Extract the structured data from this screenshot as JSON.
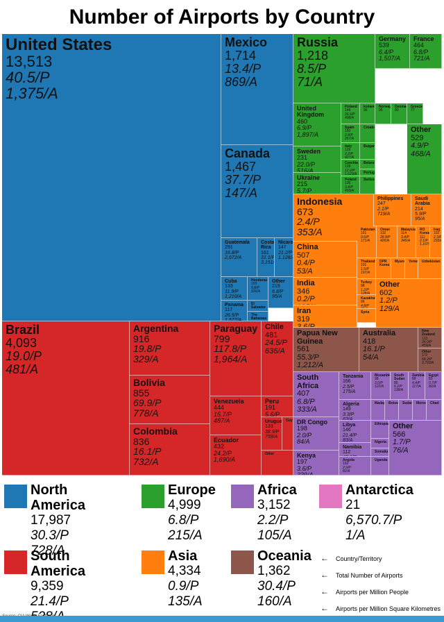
{
  "chart_data": {
    "type": "treemap",
    "title": "Number of Airports by Country",
    "colors": {
      "north_america": "#1f77b4",
      "south_america": "#d62728",
      "europe": "#2ca02c",
      "asia": "#ff7f0e",
      "africa": "#9467bd",
      "oceania": "#8c564b",
      "antarctica": "#e377c2"
    },
    "tiles": [
      {
        "name": "United States",
        "region": "north_america",
        "total": "13,513",
        "per_p": "40.5/P",
        "per_a": "1,375/A"
      },
      {
        "name": "Mexico",
        "region": "north_america",
        "total": "1,714",
        "per_p": "13.4/P",
        "per_a": "869/A"
      },
      {
        "name": "Canada",
        "region": "north_america",
        "total": "1,467",
        "per_p": "37.7/P",
        "per_a": "147/A"
      },
      {
        "name": "Guatemala",
        "region": "north_america",
        "total": "291",
        "per_p": "16.8/P",
        "per_a": "2,672/A"
      },
      {
        "name": "Costa Rica",
        "region": "north_america",
        "total": "161",
        "per_p": "31.1/P",
        "per_a": "3,151/A"
      },
      {
        "name": "Nicaragua",
        "region": "north_america",
        "total": "147",
        "per_p": "21.2/P",
        "per_a": "1,128/A"
      },
      {
        "name": "Cuba",
        "region": "north_america",
        "total": "133",
        "per_p": "11.9/P",
        "per_a": "1,210/A"
      },
      {
        "name": "Honduras",
        "region": "north_america",
        "total": "103",
        "per_p": "9.8/P",
        "per_a": "916/A"
      },
      {
        "name": "Other",
        "region": "north_america",
        "total": "219",
        "per_p": "6.8/P",
        "per_a": "95/A"
      },
      {
        "name": "Panama",
        "region": "north_america",
        "total": "117",
        "per_p": "26.5/P",
        "per_a": "1,577/A"
      },
      {
        "name": "El Salvador",
        "region": "north_america",
        "total": "",
        "per_p": "",
        "per_a": ""
      },
      {
        "name": "The Bahamas",
        "region": "north_america",
        "total": "",
        "per_p": "",
        "per_a": ""
      },
      {
        "name": "Brazil",
        "region": "south_america",
        "total": "4,093",
        "per_p": "19.0/P",
        "per_a": "481/A"
      },
      {
        "name": "Argentina",
        "region": "south_america",
        "total": "916",
        "per_p": "19.8/P",
        "per_a": "329/A"
      },
      {
        "name": "Bolivia",
        "region": "south_america",
        "total": "855",
        "per_p": "69.9/P",
        "per_a": "778/A"
      },
      {
        "name": "Colombia",
        "region": "south_america",
        "total": "836",
        "per_p": "16.1/P",
        "per_a": "732/A"
      },
      {
        "name": "Paraguay",
        "region": "south_america",
        "total": "799",
        "per_p": "117.8/P",
        "per_a": "1,964/A"
      },
      {
        "name": "Chile",
        "region": "south_america",
        "total": "481",
        "per_p": "24.5/P",
        "per_a": "636/A"
      },
      {
        "name": "Venezuela",
        "region": "south_america",
        "total": "444",
        "per_p": "15.7/P",
        "per_a": "487/A"
      },
      {
        "name": "Peru",
        "region": "south_america",
        "total": "191",
        "per_p": "5.6/P",
        "per_a": "149/A"
      },
      {
        "name": "Uruguay",
        "region": "south_america",
        "total": "133",
        "per_p": "38.9/P",
        "per_a": "759/A"
      },
      {
        "name": "Guyana",
        "region": "south_america",
        "total": "",
        "per_p": "",
        "per_a": ""
      },
      {
        "name": "Ecuador",
        "region": "south_america",
        "total": "432",
        "per_p": "24.2/P",
        "per_a": "1,690/A"
      },
      {
        "name": "Other",
        "region": "south_america",
        "total": "",
        "per_p": "",
        "per_a": ""
      },
      {
        "name": "Russia",
        "region": "europe",
        "total": "1,218",
        "per_p": "8.5/P",
        "per_a": "71/A"
      },
      {
        "name": "Germany",
        "region": "europe",
        "total": "539",
        "per_p": "6.4/P",
        "per_a": "1,507/A"
      },
      {
        "name": "France",
        "region": "europe",
        "total": "464",
        "per_p": "6.8/P",
        "per_a": "721/A"
      },
      {
        "name": "United Kingdom",
        "region": "europe",
        "total": "460",
        "per_p": "6.9/P",
        "per_a": "1,897/A"
      },
      {
        "name": "Finland",
        "region": "europe",
        "total": "148",
        "per_p": "26.6/P",
        "per_a": "438/A"
      },
      {
        "name": "Iceland",
        "region": "europe",
        "total": "96",
        "per_p": "",
        "per_a": ""
      },
      {
        "name": "Norway",
        "region": "europe",
        "total": "95",
        "per_p": "",
        "per_a": ""
      },
      {
        "name": "Denmark",
        "region": "europe",
        "total": "80",
        "per_p": "",
        "per_a": ""
      },
      {
        "name": "Greece",
        "region": "europe",
        "total": "77",
        "per_p": "",
        "per_a": ""
      },
      {
        "name": "Spain",
        "region": "europe",
        "total": "150",
        "per_p": "2.8/P",
        "per_a": "267/A"
      },
      {
        "name": "Croatia",
        "region": "europe",
        "total": "",
        "per_p": "",
        "per_a": ""
      },
      {
        "name": "Italy",
        "region": "europe",
        "total": "129",
        "per_p": "2.2/P",
        "per_a": "427/A"
      },
      {
        "name": "Bulgaria",
        "region": "europe",
        "total": "",
        "per_p": "",
        "per_a": ""
      },
      {
        "name": "Sweden",
        "region": "europe",
        "total": "231",
        "per_p": "22.0/P",
        "per_a": "516/A"
      },
      {
        "name": "Czechia",
        "region": "europe",
        "total": "128",
        "per_p": "12.2/P",
        "per_a": "1,623/A"
      },
      {
        "name": "Belarus",
        "region": "europe",
        "total": "",
        "per_p": "",
        "per_a": ""
      },
      {
        "name": "Portugal",
        "region": "europe",
        "total": "",
        "per_p": "",
        "per_a": ""
      },
      {
        "name": "Ukraine",
        "region": "europe",
        "total": "215",
        "per_p": "5.7/P",
        "per_a": "356/A"
      },
      {
        "name": "Poland",
        "region": "europe",
        "total": "126",
        "per_p": "3.4/P",
        "per_a": "403/A"
      },
      {
        "name": "Switzerland",
        "region": "europe",
        "total": "",
        "per_p": "",
        "per_a": ""
      },
      {
        "name": "Other",
        "region": "europe",
        "total": "529",
        "per_p": "4.9/P",
        "per_a": "468/A"
      },
      {
        "name": "Indonesia",
        "region": "asia",
        "total": "673",
        "per_p": "2.4/P",
        "per_a": "353/A"
      },
      {
        "name": "Philippines",
        "region": "asia",
        "total": "247",
        "per_p": "2.1/P",
        "per_a": "719/A"
      },
      {
        "name": "Saudi Arabia",
        "region": "asia",
        "total": "214",
        "per_p": "5.9/P",
        "per_a": "95/A"
      },
      {
        "name": "Japan",
        "region": "asia",
        "total": "175",
        "per_p": "1.4/P",
        "per_a": "463/A"
      },
      {
        "name": "Pakistan",
        "region": "asia",
        "total": "151",
        "per_p": "0.6/P",
        "per_a": "171/A"
      },
      {
        "name": "Oman",
        "region": "asia",
        "total": "132",
        "per_p": "28.8/P",
        "per_a": "426/A"
      },
      {
        "name": "Malaysia",
        "region": "asia",
        "total": "114",
        "per_p": "3.4/P",
        "per_a": "345/A"
      },
      {
        "name": "RO Korea",
        "region": "asia",
        "total": "111",
        "per_p": "2.1/P",
        "per_a": "1,107/A"
      },
      {
        "name": "Iraq",
        "region": "asia",
        "total": "102",
        "per_p": "2.3/P",
        "per_a": "233/A"
      },
      {
        "name": "China",
        "region": "asia",
        "total": "507",
        "per_p": "0.4/P",
        "per_a": "53/A"
      },
      {
        "name": "Thailand",
        "region": "asia",
        "total": "101",
        "per_p": "1.5/P",
        "per_a": "197/A"
      },
      {
        "name": "DPR Korea",
        "region": "asia",
        "total": "",
        "per_p": "",
        "per_a": ""
      },
      {
        "name": "Myanmar",
        "region": "asia",
        "total": "",
        "per_p": "",
        "per_a": ""
      },
      {
        "name": "Yemen",
        "region": "asia",
        "total": "",
        "per_p": "",
        "per_a": ""
      },
      {
        "name": "Uzbekistan",
        "region": "asia",
        "total": "",
        "per_p": "",
        "per_a": ""
      },
      {
        "name": "Turkey",
        "region": "asia",
        "total": "98",
        "per_p": "1.2/P",
        "per_a": "128/A"
      },
      {
        "name": "Kazakhstan",
        "region": "asia",
        "total": "96",
        "per_p": "4.8/P",
        "per_a": "35/A"
      },
      {
        "name": "Syria",
        "region": "asia",
        "total": "",
        "per_p": "",
        "per_a": ""
      },
      {
        "name": "India",
        "region": "asia",
        "total": "346",
        "per_p": "0.2/P",
        "per_a": "105/A"
      },
      {
        "name": "Iran",
        "region": "asia",
        "total": "319",
        "per_p": "3.6/P",
        "per_a": "194/A"
      },
      {
        "name": "Other",
        "region": "asia",
        "total": "602",
        "per_p": "1.2/P",
        "per_a": "129/A"
      },
      {
        "name": "Papua New Guinea",
        "region": "oceania",
        "total": "561",
        "per_p": "55.3/P",
        "per_a": "1,212/A"
      },
      {
        "name": "Australia",
        "region": "oceania",
        "total": "418",
        "per_p": "16.1/P",
        "per_a": "54/A"
      },
      {
        "name": "New Zealand",
        "region": "oceania",
        "total": "123",
        "per_p": "24.0/P",
        "per_a": "459/A"
      },
      {
        "name": "Other",
        "region": "oceania",
        "total": "172",
        "per_p": "68.2/P",
        "per_a": "3,793/A"
      },
      {
        "name": "South Africa",
        "region": "africa",
        "total": "407",
        "per_p": "6.8/P",
        "per_a": "333/A"
      },
      {
        "name": "Tanzania",
        "region": "africa",
        "total": "166",
        "per_p": "2.5/P",
        "per_a": "175/A"
      },
      {
        "name": "Mozambique",
        "region": "africa",
        "total": "98",
        "per_p": "3.0/P",
        "per_a": "122/A"
      },
      {
        "name": "South Sudan",
        "region": "africa",
        "total": "85",
        "per_p": "6.2/P",
        "per_a": "138/A"
      },
      {
        "name": "Zambia",
        "region": "africa",
        "total": "88",
        "per_p": "4.4/P",
        "per_a": "117/A"
      },
      {
        "name": "Egypt",
        "region": "africa",
        "total": "83",
        "per_p": "0.7/P",
        "per_a": "82/A"
      },
      {
        "name": "Algeria",
        "region": "africa",
        "total": "149",
        "per_p": "3.3/P",
        "per_a": "63/A"
      },
      {
        "name": "Madagascar",
        "region": "africa",
        "total": "",
        "per_p": "",
        "per_a": ""
      },
      {
        "name": "Botswana",
        "region": "africa",
        "total": "",
        "per_p": "",
        "per_a": ""
      },
      {
        "name": "Sudan",
        "region": "africa",
        "total": "",
        "per_p": "",
        "per_a": ""
      },
      {
        "name": "Morocco",
        "region": "africa",
        "total": "",
        "per_p": "",
        "per_a": ""
      },
      {
        "name": "Chad",
        "region": "africa",
        "total": "",
        "per_p": "",
        "per_a": ""
      },
      {
        "name": "DR Congo",
        "region": "africa",
        "total": "198",
        "per_p": "2.0/P",
        "per_a": "84/A"
      },
      {
        "name": "Kenya",
        "region": "africa",
        "total": "197",
        "per_p": "3.6/P",
        "per_a": "339/A"
      },
      {
        "name": "Libya",
        "region": "africa",
        "total": "146",
        "per_p": "21.4/P",
        "per_a": "83/A"
      },
      {
        "name": "Ethiopia",
        "region": "africa",
        "total": "",
        "per_p": "",
        "per_a": ""
      },
      {
        "name": "Nigeria",
        "region": "africa",
        "total": "",
        "per_p": "",
        "per_a": ""
      },
      {
        "name": "Namibia",
        "region": "africa",
        "total": "112",
        "per_p": "43.6/P",
        "per_a": "136/A"
      },
      {
        "name": "Somalia",
        "region": "africa",
        "total": "",
        "per_p": "",
        "per_a": ""
      },
      {
        "name": "Other",
        "region": "africa",
        "total": "566",
        "per_p": "1.7/P",
        "per_a": "76/A"
      },
      {
        "name": "Zimbabwe",
        "region": "africa",
        "total": "196",
        "per_p": "12.0/P",
        "per_a": "502/A"
      },
      {
        "name": "Angola",
        "region": "africa",
        "total": "102",
        "per_p": "2.9/P",
        "per_a": "82/A"
      },
      {
        "name": "Uganda",
        "region": "africa",
        "total": "",
        "per_p": "",
        "per_a": ""
      }
    ],
    "legend": [
      {
        "name": "North America",
        "color": "#1f77b4",
        "total": "17,987",
        "per_p": "30.3/P",
        "per_a": "728/A"
      },
      {
        "name": "Europe",
        "color": "#2ca02c",
        "total": "4,999",
        "per_p": "6.8/P",
        "per_a": "215/A"
      },
      {
        "name": "Africa",
        "color": "#9467bd",
        "total": "3,152",
        "per_p": "2.2/P",
        "per_a": "105/A"
      },
      {
        "name": "Antarctica",
        "color": "#e377c2",
        "total": "21",
        "per_p": "6,570.7/P",
        "per_a": "1/A"
      },
      {
        "name": "South America",
        "color": "#d62728",
        "total": "9,359",
        "per_p": "21.4/P",
        "per_a": "528/A"
      },
      {
        "name": "Asia",
        "color": "#ff7f0e",
        "total": "4,334",
        "per_p": "0.9/P",
        "per_a": "135/A"
      },
      {
        "name": "Oceania",
        "color": "#8c564b",
        "total": "1,362",
        "per_p": "30.4/P",
        "per_a": "160/A"
      }
    ],
    "key": [
      "Country/Territory",
      "Total Number of Airports",
      "Airports per Million People",
      "Airports per Million Square Kilometres"
    ],
    "source": "Source: CIA World Factbook"
  }
}
